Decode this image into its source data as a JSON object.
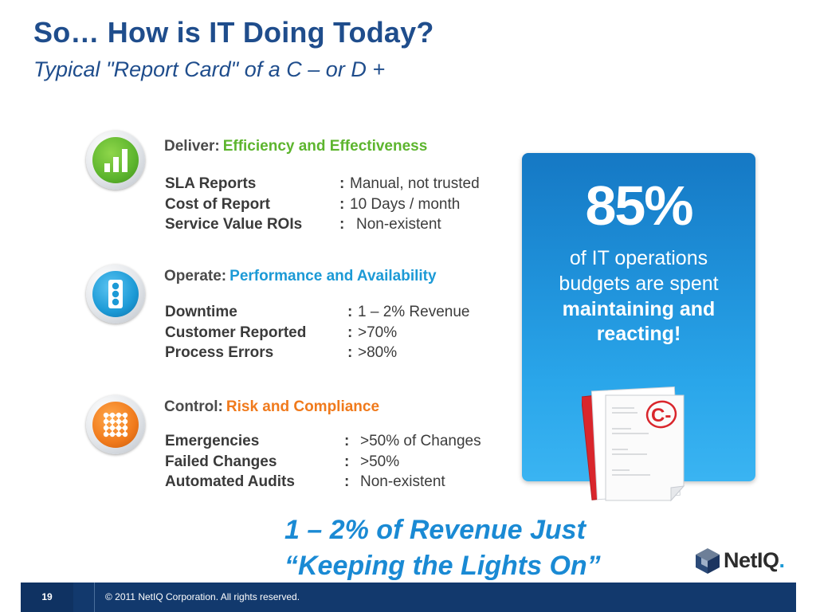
{
  "header": {
    "title": "So… How is IT Doing Today?",
    "subtitle": "Typical \"Report Card\" of a C – or D +"
  },
  "sections": [
    {
      "head": "Deliver:",
      "accent": "Efficiency and Effectiveness",
      "accent_color": "#5db52e",
      "icon": "bar-chart-icon",
      "rows": [
        {
          "label": "SLA Reports",
          "colon": ":",
          "value": "Manual, not trusted"
        },
        {
          "label": "Cost of Report",
          "colon": ":",
          "value": "10 Days / month"
        },
        {
          "label": "Service Value ROIs",
          "colon": ":",
          "value": "Non-existent"
        }
      ]
    },
    {
      "head": "Operate:",
      "accent": "Performance and Availability",
      "accent_color": "#1c9ad6",
      "icon": "status-lights-icon",
      "rows": [
        {
          "label": "Downtime",
          "colon": ":",
          "value": "1 – 2% Revenue"
        },
        {
          "label": "Customer Reported",
          "colon": ":",
          "value": ">70%"
        },
        {
          "label": "Process Errors",
          "colon": ":",
          "value": ">80%"
        }
      ]
    },
    {
      "head": "Control:",
      "accent": "Risk and Compliance",
      "accent_color": "#f07a1c",
      "icon": "grid-network-icon",
      "rows": [
        {
          "label": "Emergencies",
          "colon": ":",
          "value": ">50% of Changes"
        },
        {
          "label": "Failed Changes",
          "colon": ":",
          "value": ">50%"
        },
        {
          "label": "Automated Audits",
          "colon": ":",
          "value": "Non-existent"
        }
      ]
    }
  ],
  "callout": {
    "percent": "85%",
    "line1": "of IT operations",
    "line2": "budgets are spent",
    "line3": "maintaining and",
    "line4": "reacting!",
    "grade": "C-"
  },
  "quote": {
    "line1": "1 – 2% of Revenue Just",
    "line2": "“Keeping the Lights On”"
  },
  "logo": {
    "net": "Net",
    "iq": "IQ",
    "suffix": "."
  },
  "footer": {
    "page_number": "19",
    "copyright": "© 2011 NetIQ Corporation.  All rights reserved."
  }
}
